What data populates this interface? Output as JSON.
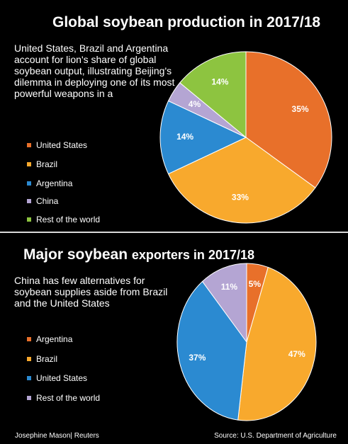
{
  "chart_data": [
    {
      "type": "pie",
      "title": "Global soybean production in 2017/18",
      "subtitle": "United States, Brazil and Argentina account for lion's share of global soybean output, illustrating Beijing's dilemma in deploying one of its most powerful weapons in a",
      "slices": [
        {
          "name": "United States",
          "value": 35,
          "label": "35%",
          "color": "#e8702a"
        },
        {
          "name": "Brazil",
          "value": 33,
          "label": "33%",
          "color": "#f8a92d"
        },
        {
          "name": "Argentina",
          "value": 14,
          "label": "14%",
          "color": "#2b8ad1"
        },
        {
          "name": "China",
          "value": 4,
          "label": "4%",
          "color": "#b4a5d3"
        },
        {
          "name": "Rest of the world",
          "value": 14,
          "label": "14%",
          "color": "#8dc440"
        }
      ],
      "legend": [
        "United States",
        "Brazil",
        "Argentina",
        "China",
        "Rest of the world"
      ],
      "legend_position": "left"
    },
    {
      "type": "pie",
      "title_main": "Major soybean",
      "title_rest": "exporters in 2017/18",
      "subtitle": "China has few alternatives for soybean supplies aside from Brazil and the United States",
      "slices": [
        {
          "name": "Argentina",
          "value": 5,
          "label": "5%",
          "color": "#e8702a"
        },
        {
          "name": "Brazil",
          "value": 47,
          "label": "47%",
          "color": "#f8a92d"
        },
        {
          "name": "United States",
          "value": 37,
          "label": "37%",
          "color": "#2b8ad1"
        },
        {
          "name": "Rest of the world",
          "value": 11,
          "label": "11%",
          "color": "#b4a5d3"
        }
      ],
      "legend": [
        "Argentina",
        "Brazil",
        "United States",
        "Rest of the world"
      ],
      "legend_position": "left"
    }
  ],
  "footer": {
    "credit": "Josephine Mason| Reuters",
    "source": "Source: U.S. Department of Agriculture"
  }
}
